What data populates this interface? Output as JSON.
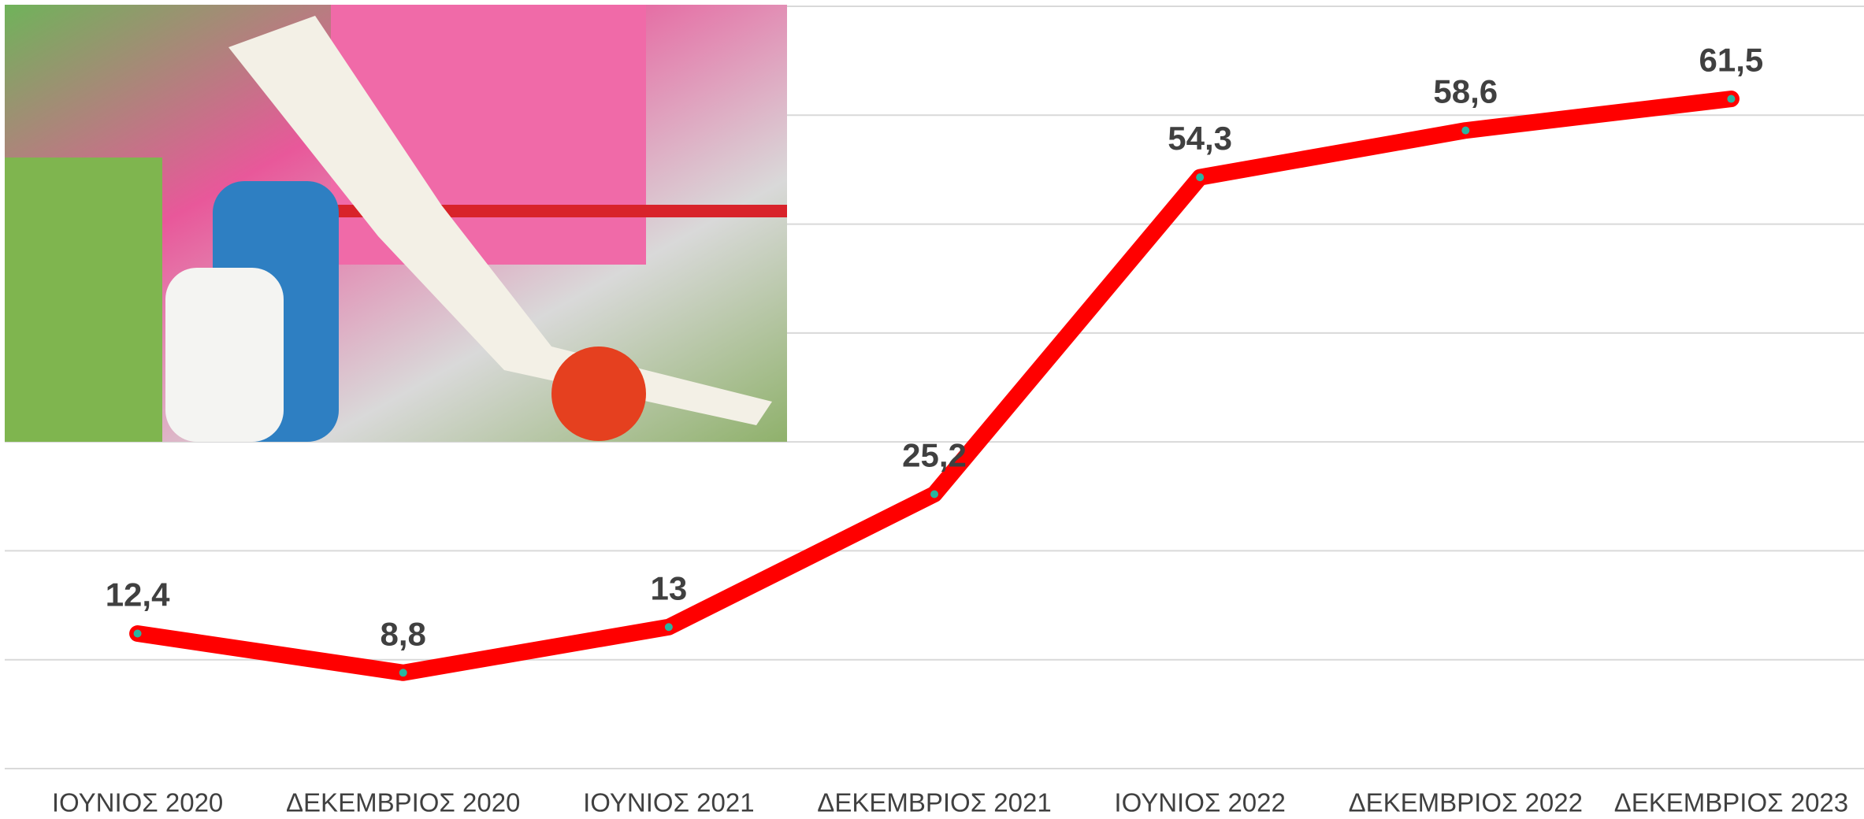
{
  "chart_data": {
    "type": "line",
    "categories": [
      "ΙΟΥΝΙΟΣ 2020",
      "ΔΕΚΕΜΒΡΙΟΣ 2020",
      "ΙΟΥΝΙΟΣ 2021",
      "ΔΕΚΕΜΒΡΙΟΣ 2021",
      "ΙΟΥΝΙΟΣ 2022",
      "ΔΕΚΕΜΒΡΙΟΣ 2022",
      "ΔΕΚΕΜΒΡΙΟΣ 2023"
    ],
    "values": [
      12.4,
      8.8,
      13,
      25.2,
      54.3,
      58.6,
      61.5
    ],
    "value_labels": [
      "12,4",
      "8,8",
      "13",
      "25,2",
      "54,3",
      "58,6",
      "61,5"
    ],
    "color": "#ff0000",
    "ylim": [
      0,
      70
    ],
    "yticks": [
      0,
      10,
      20,
      30,
      40,
      50,
      60,
      70
    ],
    "grid": true
  }
}
